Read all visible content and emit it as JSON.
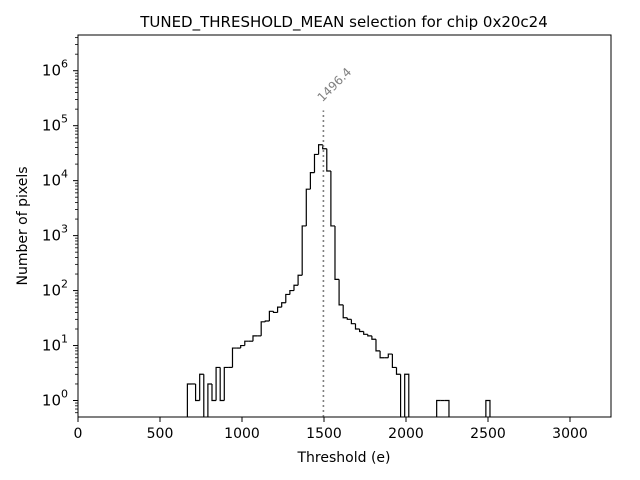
{
  "chart_data": {
    "type": "histogram",
    "title": "TUNED_THRESHOLD_MEAN selection for chip 0x20c24",
    "xlabel": "Threshold (e)",
    "ylabel": "Number of pixels",
    "xlim": [
      0,
      3250
    ],
    "ylim_log10": [
      -0.3,
      6.65
    ],
    "y_scale": "log",
    "x_ticks": [
      {
        "value": 0,
        "label": "0"
      },
      {
        "value": 500,
        "label": "500"
      },
      {
        "value": 1000,
        "label": "1000"
      },
      {
        "value": 1500,
        "label": "1500"
      },
      {
        "value": 2000,
        "label": "2000"
      },
      {
        "value": 2500,
        "label": "2500"
      },
      {
        "value": 3000,
        "label": "3000"
      }
    ],
    "y_ticks": [
      {
        "exp": 0,
        "label_base": "10",
        "label_exp": "0"
      },
      {
        "exp": 1,
        "label_base": "10",
        "label_exp": "1"
      },
      {
        "exp": 2,
        "label_base": "10",
        "label_exp": "2"
      },
      {
        "exp": 3,
        "label_base": "10",
        "label_exp": "3"
      },
      {
        "exp": 4,
        "label_base": "10",
        "label_exp": "4"
      },
      {
        "exp": 5,
        "label_base": "10",
        "label_exp": "5"
      },
      {
        "exp": 6,
        "label_base": "10",
        "label_exp": "6"
      }
    ],
    "grid": false,
    "colors": {
      "histogram": "#000000",
      "marker": "#808080"
    },
    "bin_width": 25,
    "bins": [
      {
        "x": 667,
        "count": 2
      },
      {
        "x": 692,
        "count": 2
      },
      {
        "x": 717,
        "count": 1
      },
      {
        "x": 742,
        "count": 3
      },
      {
        "x": 767,
        "count": 0
      },
      {
        "x": 792,
        "count": 2
      },
      {
        "x": 817,
        "count": 1
      },
      {
        "x": 842,
        "count": 4
      },
      {
        "x": 867,
        "count": 1
      },
      {
        "x": 892,
        "count": 4
      },
      {
        "x": 917,
        "count": 4
      },
      {
        "x": 942,
        "count": 9
      },
      {
        "x": 967,
        "count": 9
      },
      {
        "x": 992,
        "count": 10
      },
      {
        "x": 1017,
        "count": 12
      },
      {
        "x": 1042,
        "count": 12
      },
      {
        "x": 1067,
        "count": 15
      },
      {
        "x": 1092,
        "count": 15
      },
      {
        "x": 1117,
        "count": 27
      },
      {
        "x": 1142,
        "count": 28
      },
      {
        "x": 1167,
        "count": 42
      },
      {
        "x": 1192,
        "count": 40
      },
      {
        "x": 1217,
        "count": 50
      },
      {
        "x": 1242,
        "count": 60
      },
      {
        "x": 1267,
        "count": 85
      },
      {
        "x": 1292,
        "count": 100
      },
      {
        "x": 1317,
        "count": 125
      },
      {
        "x": 1342,
        "count": 190
      },
      {
        "x": 1367,
        "count": 1500
      },
      {
        "x": 1392,
        "count": 7000
      },
      {
        "x": 1417,
        "count": 14000
      },
      {
        "x": 1442,
        "count": 30000
      },
      {
        "x": 1467,
        "count": 45000
      },
      {
        "x": 1492,
        "count": 38000
      },
      {
        "x": 1517,
        "count": 15000
      },
      {
        "x": 1542,
        "count": 1500
      },
      {
        "x": 1567,
        "count": 160
      },
      {
        "x": 1592,
        "count": 55
      },
      {
        "x": 1617,
        "count": 32
      },
      {
        "x": 1642,
        "count": 30
      },
      {
        "x": 1667,
        "count": 25
      },
      {
        "x": 1692,
        "count": 20
      },
      {
        "x": 1717,
        "count": 18
      },
      {
        "x": 1742,
        "count": 16
      },
      {
        "x": 1767,
        "count": 15
      },
      {
        "x": 1792,
        "count": 13
      },
      {
        "x": 1817,
        "count": 8
      },
      {
        "x": 1842,
        "count": 6
      },
      {
        "x": 1867,
        "count": 6
      },
      {
        "x": 1892,
        "count": 7
      },
      {
        "x": 1917,
        "count": 4
      },
      {
        "x": 1942,
        "count": 3
      },
      {
        "x": 1967,
        "count": 0
      },
      {
        "x": 1992,
        "count": 3
      },
      {
        "x": 2187,
        "count": 1
      },
      {
        "x": 2212,
        "count": 1
      },
      {
        "x": 2237,
        "count": 1
      },
      {
        "x": 2487,
        "count": 1
      }
    ],
    "annotations": [
      {
        "type": "vline",
        "x": 1496.4,
        "label": "1496.4",
        "top_count": 190000
      }
    ]
  }
}
